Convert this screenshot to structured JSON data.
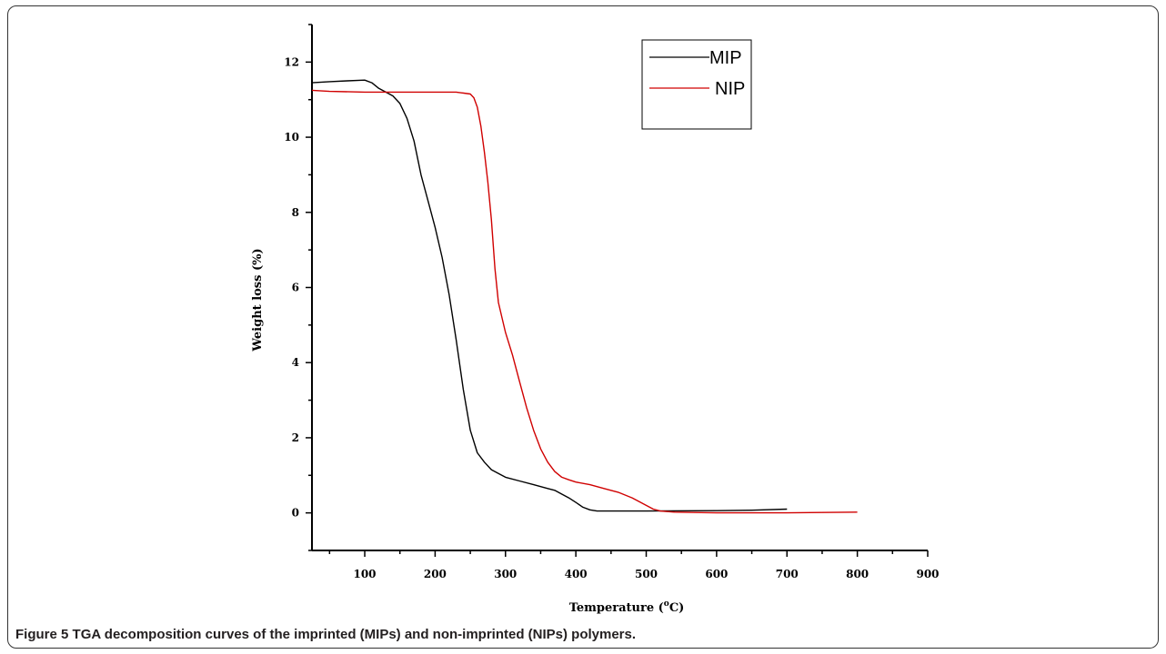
{
  "figure": {
    "label": "Figure 5",
    "caption": "TGA decomposition curves of the imprinted (MIPs) and non-imprinted (NIPs) polymers."
  },
  "chart_data": {
    "type": "line",
    "title": "",
    "xlabel": "Temperature (",
    "xlabel_sup": "o",
    "xlabel_tail": "C)",
    "ylabel": "Weight loss (%)",
    "xlim": [
      25,
      900
    ],
    "ylim": [
      -1,
      13
    ],
    "xticks": [
      100,
      200,
      300,
      400,
      500,
      600,
      700,
      800,
      900
    ],
    "yticks": [
      0,
      2,
      4,
      6,
      8,
      10,
      12
    ],
    "grid": false,
    "legend_position": "top-right",
    "series": [
      {
        "name": "MIP",
        "color": "#000000",
        "x": [
          25,
          50,
          75,
          100,
          110,
          120,
          130,
          140,
          150,
          160,
          170,
          180,
          190,
          200,
          210,
          220,
          230,
          240,
          250,
          260,
          270,
          280,
          290,
          300,
          320,
          340,
          360,
          370,
          380,
          390,
          400,
          410,
          420,
          430,
          450,
          500,
          600,
          650,
          700
        ],
        "y": [
          11.45,
          11.48,
          11.5,
          11.52,
          11.45,
          11.3,
          11.2,
          11.1,
          10.9,
          10.5,
          9.9,
          9.0,
          8.3,
          7.6,
          6.8,
          5.8,
          4.6,
          3.3,
          2.2,
          1.6,
          1.35,
          1.15,
          1.05,
          0.95,
          0.85,
          0.75,
          0.65,
          0.6,
          0.5,
          0.4,
          0.28,
          0.15,
          0.08,
          0.05,
          0.05,
          0.05,
          0.06,
          0.07,
          0.1
        ]
      },
      {
        "name": "NIP",
        "color": "#d00000",
        "x": [
          25,
          50,
          100,
          150,
          200,
          230,
          250,
          255,
          260,
          265,
          270,
          275,
          280,
          285,
          290,
          295,
          300,
          310,
          320,
          330,
          340,
          350,
          360,
          370,
          380,
          390,
          400,
          420,
          440,
          460,
          480,
          490,
          500,
          510,
          520,
          540,
          600,
          700,
          800
        ],
        "y": [
          11.25,
          11.22,
          11.2,
          11.2,
          11.2,
          11.2,
          11.15,
          11.05,
          10.8,
          10.3,
          9.6,
          8.8,
          7.8,
          6.5,
          5.6,
          5.2,
          4.8,
          4.2,
          3.5,
          2.8,
          2.2,
          1.7,
          1.35,
          1.1,
          0.95,
          0.88,
          0.82,
          0.75,
          0.65,
          0.55,
          0.4,
          0.3,
          0.2,
          0.1,
          0.05,
          0.02,
          0.0,
          0.0,
          0.02
        ]
      }
    ]
  }
}
